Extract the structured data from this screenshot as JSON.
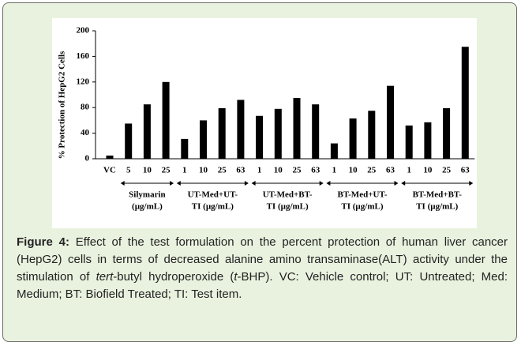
{
  "chart_data": {
    "type": "bar",
    "y_label": "% Protection of HepG2 Cells",
    "color": "#000000",
    "ylim": [
      0,
      200
    ],
    "yticks": [
      0,
      40,
      80,
      120,
      160,
      200
    ],
    "groups": [
      {
        "categories": [
          "VC"
        ],
        "values": [
          5
        ]
      },
      {
        "label": [
          "Silymarin",
          "(µg/mL)"
        ],
        "categories": [
          "5",
          "10",
          "25"
        ],
        "values": [
          55,
          85,
          120
        ]
      },
      {
        "label": [
          "UT-Med+UT-",
          "TI (µg/mL)"
        ],
        "categories": [
          "1",
          "10",
          "25",
          "63"
        ],
        "values": [
          31,
          60,
          79,
          92
        ]
      },
      {
        "label": [
          "UT-Med+BT-",
          "TI (µg/mL)"
        ],
        "categories": [
          "1",
          "10",
          "25",
          "63"
        ],
        "values": [
          67,
          78,
          95,
          85
        ]
      },
      {
        "label": [
          "BT-Med+UT-",
          "TI (µg/mL)"
        ],
        "categories": [
          "1",
          "10",
          "25",
          "63"
        ],
        "values": [
          24,
          63,
          75,
          114
        ]
      },
      {
        "label": [
          "BT-Med+BT-",
          "TI (µg/mL)"
        ],
        "categories": [
          "1",
          "10",
          "25",
          "63"
        ],
        "values": [
          52,
          57,
          79,
          175
        ]
      }
    ]
  },
  "caption": [
    {
      "text": "Figure 4:",
      "style": "bold"
    },
    {
      "text": " Effect of the test formulation on the percent protection of human liver cancer (HepG2) cells in terms of decreased alanine amino transaminase(ALT) activity under the stimulation of ",
      "style": "normal"
    },
    {
      "text": "tert",
      "style": "italic"
    },
    {
      "text": "-butyl hydroperoxide (",
      "style": "normal"
    },
    {
      "text": "t",
      "style": "italic"
    },
    {
      "text": "-BHP). VC: Vehicle control; UT: Untreated; Med: Medium; BT: Biofield Treated; TI: Test item.",
      "style": "normal"
    }
  ]
}
